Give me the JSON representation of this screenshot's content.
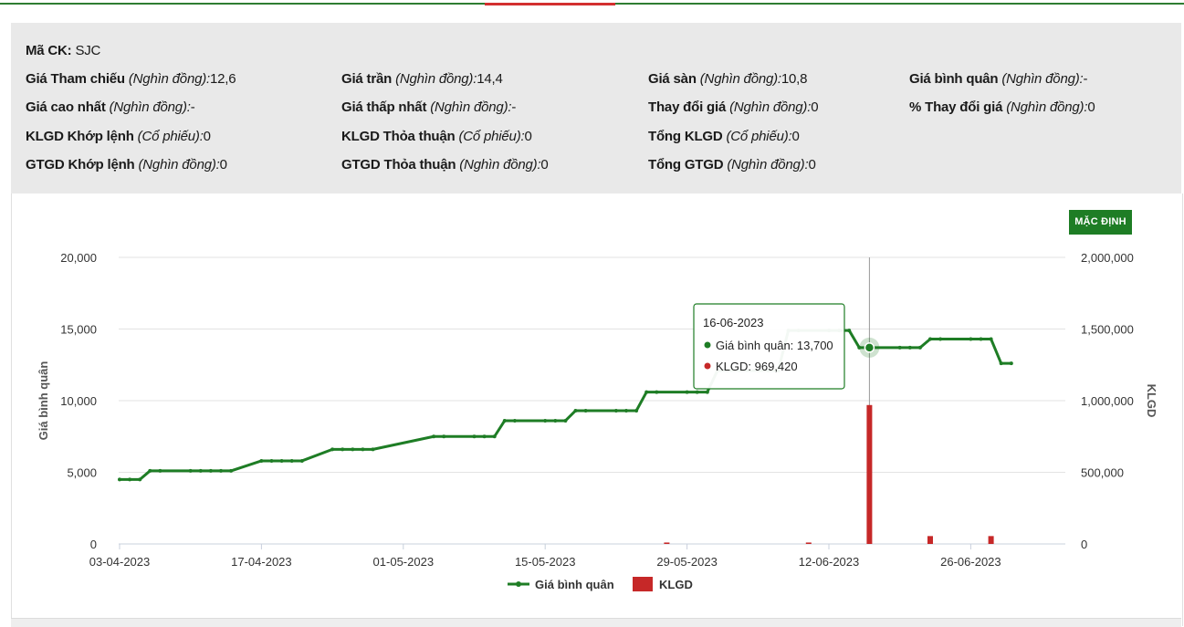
{
  "header": {
    "symbol_label": "Mã CK:",
    "symbol_value": "SJC"
  },
  "info": [
    {
      "label": "Giá Tham chiếu",
      "unit": "(Nghìn đồng):",
      "value": "12,6"
    },
    {
      "label": "Giá trần",
      "unit": "(Nghìn đồng):",
      "value": "14,4"
    },
    {
      "label": "Giá sàn",
      "unit": "(Nghìn đồng):",
      "value": "10,8"
    },
    {
      "label": "Giá bình quân",
      "unit": "(Nghìn đồng):",
      "value": "-"
    },
    {
      "label": "Giá cao nhất",
      "unit": "(Nghìn đồng):",
      "value": "-"
    },
    {
      "label": "Giá thấp nhất",
      "unit": "(Nghìn đồng):",
      "value": "-"
    },
    {
      "label": "Thay đổi giá",
      "unit": "(Nghìn đồng):",
      "value": "0"
    },
    {
      "label": "% Thay đổi giá",
      "unit": "(Nghìn đồng):",
      "value": "0"
    },
    {
      "label": "KLGD Khớp lệnh",
      "unit": "(Cổ phiếu):",
      "value": "0"
    },
    {
      "label": "KLGD Thỏa thuận",
      "unit": "(Cổ phiếu):",
      "value": "0"
    },
    {
      "label": "Tổng KLGD",
      "unit": "(Cổ phiếu):",
      "value": "0"
    },
    {
      "label": "GTGD Khớp lệnh",
      "unit": "(Nghìn đồng):",
      "value": "0"
    },
    {
      "label": "GTGD Thỏa thuận",
      "unit": "(Nghìn đồng):",
      "value": "0"
    },
    {
      "label": "Tổng GTGD",
      "unit": "(Nghìn đồng):",
      "value": "0"
    }
  ],
  "reset_button": "MẶC ĐỊNH",
  "colors": {
    "price_line": "#1e7d25",
    "volume_bar": "#c62828",
    "reset_button": "#1e7d25"
  },
  "chart_data": {
    "type": "line",
    "ylabel": "Giá bình quân",
    "y2label": "KLGD",
    "ylim": [
      0,
      20000
    ],
    "y2lim": [
      0,
      2000000
    ],
    "y_ticks": [
      "0",
      "5,000",
      "10,000",
      "15,000",
      "20,000"
    ],
    "y2_ticks": [
      "0",
      "500,000",
      "1,000,000",
      "1,500,000",
      "2,000,000"
    ],
    "x_ticks": [
      "03-04-2023",
      "17-04-2023",
      "01-05-2023",
      "15-05-2023",
      "29-05-2023",
      "12-06-2023",
      "26-06-2023"
    ],
    "grid": true,
    "legend": "bottom",
    "series": [
      {
        "name": "Giá bình quân",
        "type": "line",
        "x": [
          "03-04-2023",
          "04-04-2023",
          "05-04-2023",
          "06-04-2023",
          "07-04-2023",
          "10-04-2023",
          "11-04-2023",
          "12-04-2023",
          "13-04-2023",
          "14-04-2023",
          "17-04-2023",
          "18-04-2023",
          "19-04-2023",
          "20-04-2023",
          "21-04-2023",
          "24-04-2023",
          "25-04-2023",
          "26-04-2023",
          "27-04-2023",
          "28-04-2023",
          "04-05-2023",
          "05-05-2023",
          "08-05-2023",
          "09-05-2023",
          "10-05-2023",
          "11-05-2023",
          "12-05-2023",
          "15-05-2023",
          "16-05-2023",
          "17-05-2023",
          "18-05-2023",
          "19-05-2023",
          "22-05-2023",
          "23-05-2023",
          "24-05-2023",
          "25-05-2023",
          "26-05-2023",
          "29-05-2023",
          "30-05-2023",
          "31-05-2023",
          "01-06-2023",
          "02-06-2023",
          "05-06-2023",
          "06-06-2023",
          "07-06-2023",
          "08-06-2023",
          "09-06-2023",
          "12-06-2023",
          "13-06-2023",
          "14-06-2023",
          "15-06-2023",
          "16-06-2023",
          "19-06-2023",
          "20-06-2023",
          "21-06-2023",
          "22-06-2023",
          "23-06-2023",
          "26-06-2023",
          "27-06-2023",
          "28-06-2023",
          "29-06-2023",
          "30-06-2023"
        ],
        "values": [
          4500,
          4500,
          4500,
          5100,
          5100,
          5100,
          5100,
          5100,
          5100,
          5100,
          5800,
          5800,
          5800,
          5800,
          5800,
          6600,
          6600,
          6600,
          6600,
          6600,
          7500,
          7500,
          7500,
          7500,
          7500,
          8600,
          8600,
          8600,
          8600,
          8600,
          9300,
          9300,
          9300,
          9300,
          9300,
          10600,
          10600,
          10600,
          10600,
          10600,
          12100,
          12100,
          12100,
          12100,
          12100,
          14900,
          14900,
          14900,
          14900,
          14900,
          13700,
          13700,
          13700,
          13700,
          13700,
          14300,
          14300,
          14300,
          14300,
          14300,
          12600,
          12600
        ]
      },
      {
        "name": "KLGD",
        "type": "bar",
        "x": [
          "27-05-2023",
          "10-06-2023",
          "16-06-2023",
          "22-06-2023",
          "28-06-2023"
        ],
        "values": [
          10000,
          10000,
          969420,
          55000,
          55000
        ]
      }
    ],
    "tooltip": {
      "date": "16-06-2023",
      "price_label": "Giá bình quân:",
      "price_value": "13,700",
      "volume_label": "KLGD:",
      "volume_value": "969,420"
    }
  }
}
